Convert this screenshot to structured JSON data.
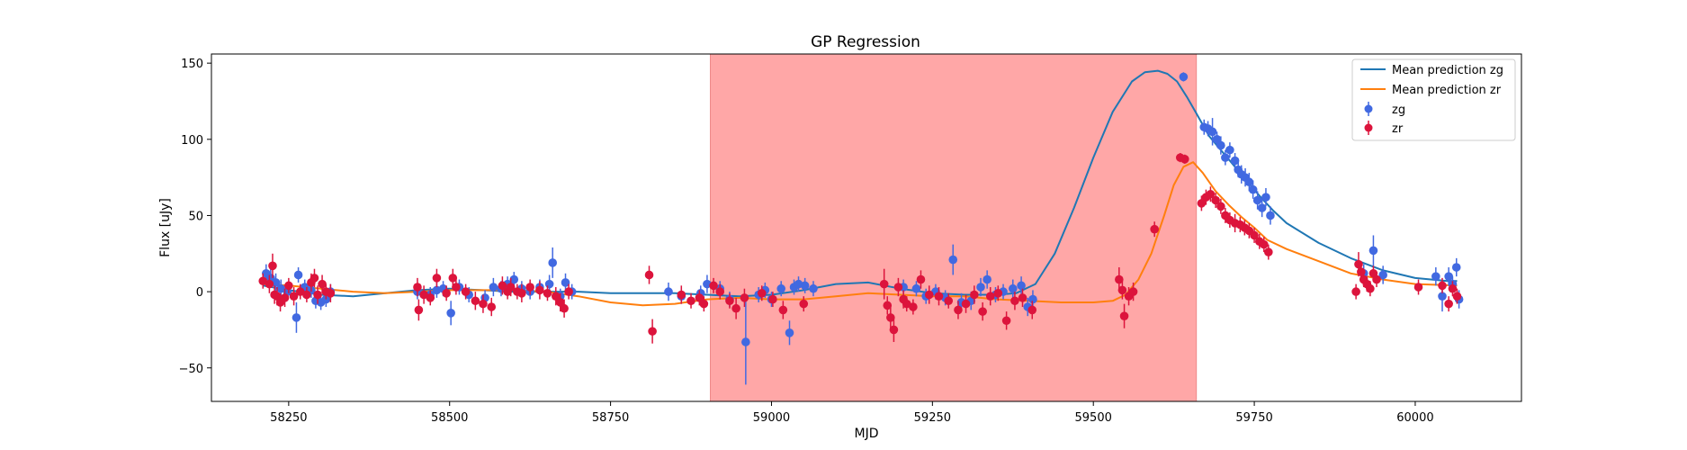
{
  "chart_data": {
    "type": "scatter",
    "title": "GP Regression",
    "xlabel": "MJD",
    "ylabel": "Flux [uJy]",
    "xlim": [
      58130,
      60165
    ],
    "ylim": [
      -72,
      156
    ],
    "xticks": [
      58250,
      58500,
      58750,
      59000,
      59250,
      59500,
      59750,
      60000
    ],
    "yticks": [
      -50,
      0,
      50,
      100,
      150
    ],
    "grid": false,
    "legend_position": "top-right",
    "shaded_regions": [
      {
        "x": [
          58905,
          59660
        ],
        "color": "#ffa7a7"
      }
    ],
    "lines": [
      {
        "name": "Mean prediction zg",
        "color": "#1f77b4",
        "x": [
          58210,
          58250,
          58300,
          58350,
          58400,
          58450,
          58500,
          58550,
          58600,
          58650,
          58700,
          58750,
          58800,
          58850,
          58900,
          58950,
          59000,
          59050,
          59100,
          59150,
          59200,
          59250,
          59300,
          59350,
          59380,
          59410,
          59440,
          59470,
          59500,
          59530,
          59560,
          59580,
          59600,
          59615,
          59630,
          59645,
          59660,
          59680,
          59700,
          59720,
          59740,
          59760,
          59780,
          59800,
          59850,
          59900,
          59950,
          60000,
          60050,
          60065
        ],
        "y": [
          4,
          1,
          -2,
          -3,
          -1,
          1,
          2,
          1,
          0,
          0,
          0,
          -1,
          -1,
          -1,
          -2,
          -3,
          -2,
          1,
          5,
          6,
          2,
          -1,
          -2,
          -2,
          -1,
          5,
          25,
          55,
          88,
          118,
          138,
          144,
          145,
          143,
          138,
          128,
          117,
          102,
          92,
          82,
          72,
          62,
          53,
          45,
          32,
          22,
          14,
          9,
          7,
          7
        ]
      },
      {
        "name": "Mean prediction zr",
        "color": "#ff7f0e",
        "x": [
          58210,
          58250,
          58300,
          58350,
          58400,
          58450,
          58500,
          58550,
          58600,
          58650,
          58700,
          58750,
          58800,
          58850,
          58900,
          58950,
          59000,
          59050,
          59100,
          59150,
          59200,
          59250,
          59300,
          59350,
          59400,
          59450,
          59500,
          59530,
          59550,
          59570,
          59590,
          59610,
          59625,
          59640,
          59655,
          59670,
          59690,
          59710,
          59730,
          59750,
          59770,
          59800,
          59850,
          59900,
          59950,
          60000,
          60065
        ],
        "y": [
          5,
          4,
          2,
          0,
          -1,
          0,
          1,
          1,
          1,
          0,
          -3,
          -7,
          -9,
          -8,
          -5,
          -4,
          -5,
          -5,
          -3,
          -1,
          -2,
          -3,
          -3,
          -5,
          -6,
          -7,
          -7,
          -6,
          -2,
          8,
          25,
          50,
          70,
          82,
          85,
          78,
          66,
          57,
          49,
          42,
          34,
          28,
          20,
          12,
          8,
          5,
          4
        ]
      }
    ],
    "series": [
      {
        "name": "zg",
        "color": "#4169e1",
        "points": [
          [
            58215,
            12,
            6
          ],
          [
            58222,
            9,
            6
          ],
          [
            58230,
            6,
            6
          ],
          [
            58238,
            2,
            6
          ],
          [
            58248,
            0,
            6
          ],
          [
            58262,
            -17,
            10
          ],
          [
            58265,
            11,
            5
          ],
          [
            58275,
            3,
            5
          ],
          [
            58285,
            1,
            5
          ],
          [
            58292,
            -6,
            5
          ],
          [
            58300,
            -7,
            5
          ],
          [
            58308,
            -5,
            5
          ],
          [
            58315,
            0,
            5
          ],
          [
            58450,
            0,
            5
          ],
          [
            58470,
            -2,
            5
          ],
          [
            58480,
            1,
            5
          ],
          [
            58490,
            2,
            5
          ],
          [
            58502,
            -14,
            8
          ],
          [
            58515,
            3,
            5
          ],
          [
            58530,
            -2,
            5
          ],
          [
            58555,
            -4,
            5
          ],
          [
            58568,
            3,
            6
          ],
          [
            58580,
            2,
            5
          ],
          [
            58590,
            5,
            5
          ],
          [
            58600,
            8,
            5
          ],
          [
            58612,
            2,
            5
          ],
          [
            58625,
            0,
            5
          ],
          [
            58640,
            3,
            5
          ],
          [
            58655,
            5,
            6
          ],
          [
            58660,
            19,
            10
          ],
          [
            58672,
            -3,
            5
          ],
          [
            58680,
            6,
            6
          ],
          [
            58690,
            0,
            5
          ],
          [
            58840,
            0,
            6
          ],
          [
            58860,
            -3,
            5
          ],
          [
            58890,
            -1,
            5
          ],
          [
            58900,
            5,
            6
          ],
          [
            58920,
            2,
            5
          ],
          [
            58935,
            -5,
            5
          ],
          [
            58960,
            -33,
            28
          ],
          [
            58980,
            -2,
            5
          ],
          [
            58990,
            1,
            5
          ],
          [
            59000,
            -5,
            5
          ],
          [
            59015,
            2,
            5
          ],
          [
            59028,
            -27,
            8
          ],
          [
            59035,
            3,
            5
          ],
          [
            59042,
            5,
            5
          ],
          [
            59052,
            4,
            5
          ],
          [
            59065,
            2,
            5
          ],
          [
            59205,
            3,
            5
          ],
          [
            59225,
            2,
            5
          ],
          [
            59240,
            -3,
            5
          ],
          [
            59255,
            0,
            5
          ],
          [
            59270,
            -4,
            5
          ],
          [
            59282,
            21,
            10
          ],
          [
            59295,
            -7,
            6
          ],
          [
            59310,
            -6,
            6
          ],
          [
            59325,
            3,
            6
          ],
          [
            59335,
            8,
            6
          ],
          [
            59348,
            -2,
            5
          ],
          [
            59360,
            0,
            5
          ],
          [
            59375,
            2,
            6
          ],
          [
            59388,
            4,
            6
          ],
          [
            59398,
            -10,
            6
          ],
          [
            59406,
            -5,
            6
          ],
          [
            59640,
            141,
            3
          ],
          [
            59672,
            108,
            5
          ],
          [
            59678,
            107,
            5
          ],
          [
            59685,
            105,
            9
          ],
          [
            59692,
            100,
            5
          ],
          [
            59698,
            96,
            6
          ],
          [
            59705,
            88,
            5
          ],
          [
            59712,
            93,
            5
          ],
          [
            59720,
            86,
            5
          ],
          [
            59725,
            80,
            5
          ],
          [
            59730,
            77,
            6
          ],
          [
            59736,
            75,
            6
          ],
          [
            59742,
            72,
            6
          ],
          [
            59748,
            67,
            6
          ],
          [
            59755,
            60,
            6
          ],
          [
            59762,
            55,
            6
          ],
          [
            59768,
            62,
            6
          ],
          [
            59775,
            50,
            6
          ],
          [
            59920,
            12,
            6
          ],
          [
            59935,
            27,
            10
          ],
          [
            59950,
            11,
            6
          ],
          [
            60032,
            10,
            6
          ],
          [
            60042,
            -3,
            10
          ],
          [
            60052,
            10,
            6
          ],
          [
            60058,
            5,
            5
          ],
          [
            60064,
            16,
            6
          ],
          [
            60068,
            -5,
            6
          ]
        ]
      },
      {
        "name": "zr",
        "color": "#dc143c",
        "points": [
          [
            58210,
            7,
            5
          ],
          [
            58220,
            5,
            6
          ],
          [
            58225,
            17,
            8
          ],
          [
            58228,
            -2,
            6
          ],
          [
            58232,
            -3,
            6
          ],
          [
            58237,
            -7,
            6
          ],
          [
            58244,
            -4,
            6
          ],
          [
            58250,
            4,
            5
          ],
          [
            58258,
            -3,
            6
          ],
          [
            58268,
            0,
            5
          ],
          [
            58278,
            -2,
            5
          ],
          [
            58285,
            6,
            6
          ],
          [
            58290,
            9,
            6
          ],
          [
            58295,
            -2,
            6
          ],
          [
            58302,
            5,
            6
          ],
          [
            58308,
            0,
            5
          ],
          [
            58315,
            -1,
            6
          ],
          [
            58450,
            3,
            6
          ],
          [
            58452,
            -12,
            7
          ],
          [
            58460,
            -2,
            6
          ],
          [
            58470,
            -4,
            5
          ],
          [
            58480,
            9,
            6
          ],
          [
            58495,
            -1,
            5
          ],
          [
            58505,
            9,
            6
          ],
          [
            58510,
            3,
            5
          ],
          [
            58525,
            0,
            5
          ],
          [
            58540,
            -6,
            6
          ],
          [
            58552,
            -8,
            6
          ],
          [
            58565,
            -10,
            6
          ],
          [
            58582,
            4,
            6
          ],
          [
            58590,
            0,
            5
          ],
          [
            58595,
            3,
            6
          ],
          [
            58605,
            0,
            5
          ],
          [
            58612,
            -1,
            6
          ],
          [
            58625,
            3,
            5
          ],
          [
            58640,
            1,
            6
          ],
          [
            58652,
            -1,
            5
          ],
          [
            58665,
            -3,
            6
          ],
          [
            58672,
            -7,
            6
          ],
          [
            58678,
            -11,
            6
          ],
          [
            58685,
            0,
            5
          ],
          [
            58810,
            11,
            6
          ],
          [
            58815,
            -26,
            8
          ],
          [
            58860,
            -2,
            6
          ],
          [
            58875,
            -6,
            5
          ],
          [
            58888,
            -4,
            5
          ],
          [
            58895,
            -8,
            5
          ],
          [
            58910,
            4,
            5
          ],
          [
            58920,
            0,
            5
          ],
          [
            58935,
            -6,
            5
          ],
          [
            58945,
            -11,
            7
          ],
          [
            58958,
            -4,
            6
          ],
          [
            58985,
            -1,
            5
          ],
          [
            59002,
            -5,
            5
          ],
          [
            59018,
            -12,
            6
          ],
          [
            59050,
            -8,
            5
          ],
          [
            59175,
            5,
            10
          ],
          [
            59180,
            -9,
            6
          ],
          [
            59185,
            -17,
            8
          ],
          [
            59190,
            -25,
            8
          ],
          [
            59197,
            3,
            6
          ],
          [
            59205,
            -5,
            6
          ],
          [
            59210,
            -8,
            5
          ],
          [
            59220,
            -10,
            5
          ],
          [
            59232,
            8,
            6
          ],
          [
            59245,
            -2,
            6
          ],
          [
            59260,
            -3,
            6
          ],
          [
            59275,
            -6,
            5
          ],
          [
            59290,
            -12,
            6
          ],
          [
            59302,
            -8,
            6
          ],
          [
            59315,
            -2,
            6
          ],
          [
            59328,
            -13,
            6
          ],
          [
            59340,
            -3,
            6
          ],
          [
            59352,
            -1,
            5
          ],
          [
            59365,
            -19,
            6
          ],
          [
            59378,
            -6,
            6
          ],
          [
            59390,
            -4,
            6
          ],
          [
            59405,
            -12,
            6
          ],
          [
            59540,
            8,
            8
          ],
          [
            59545,
            1,
            6
          ],
          [
            59548,
            -16,
            8
          ],
          [
            59555,
            -3,
            6
          ],
          [
            59562,
            0,
            6
          ],
          [
            59595,
            41,
            5
          ],
          [
            59635,
            88,
            3
          ],
          [
            59642,
            87,
            3
          ],
          [
            59668,
            58,
            5
          ],
          [
            59675,
            62,
            5
          ],
          [
            59682,
            64,
            5
          ],
          [
            59690,
            60,
            5
          ],
          [
            59698,
            56,
            5
          ],
          [
            59705,
            50,
            5
          ],
          [
            59712,
            47,
            5
          ],
          [
            59720,
            45,
            6
          ],
          [
            59728,
            44,
            5
          ],
          [
            59735,
            42,
            5
          ],
          [
            59742,
            40,
            5
          ],
          [
            59750,
            37,
            5
          ],
          [
            59758,
            33,
            5
          ],
          [
            59765,
            31,
            5
          ],
          [
            59772,
            26,
            5
          ],
          [
            59908,
            0,
            5
          ],
          [
            59912,
            18,
            8
          ],
          [
            59916,
            13,
            6
          ],
          [
            59920,
            8,
            5
          ],
          [
            59925,
            5,
            5
          ],
          [
            59930,
            2,
            5
          ],
          [
            59935,
            12,
            5
          ],
          [
            59940,
            8,
            5
          ],
          [
            60005,
            3,
            5
          ],
          [
            60042,
            4,
            5
          ],
          [
            60052,
            -8,
            5
          ],
          [
            60058,
            2,
            5
          ],
          [
            60065,
            -3,
            5
          ]
        ]
      }
    ]
  }
}
